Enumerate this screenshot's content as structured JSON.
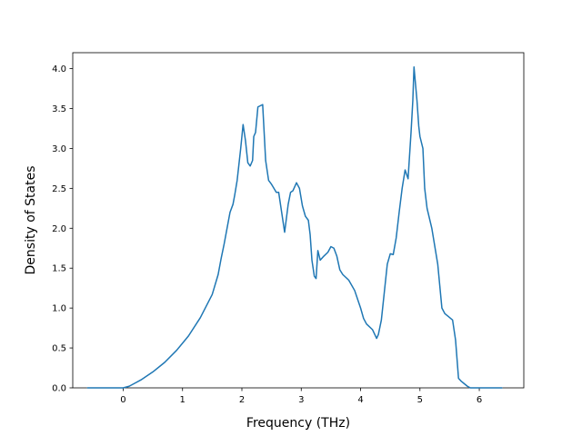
{
  "chart_data": {
    "type": "line",
    "title": "",
    "xlabel": "Frequency (THz)",
    "ylabel": "Density of States",
    "xlim": [
      -0.85,
      6.75
    ],
    "ylim": [
      0.0,
      4.2
    ],
    "xticks": [
      0,
      1,
      2,
      3,
      4,
      5,
      6
    ],
    "xtick_labels": [
      "0",
      "1",
      "2",
      "3",
      "4",
      "5",
      "6"
    ],
    "yticks": [
      0.0,
      0.5,
      1.0,
      1.5,
      2.0,
      2.5,
      3.0,
      3.5,
      4.0
    ],
    "ytick_labels": [
      "0.0",
      "0.5",
      "1.0",
      "1.5",
      "2.0",
      "2.5",
      "3.0",
      "3.5",
      "4.0"
    ],
    "grid": false,
    "line_color": "#1f77b4",
    "series": [
      {
        "x": [
          -0.6,
          0.0,
          0.1,
          0.2,
          0.3,
          0.5,
          0.7,
          0.9,
          1.1,
          1.3,
          1.5,
          1.6,
          1.65,
          1.7,
          1.8,
          1.85,
          1.88,
          1.92,
          1.95,
          1.98,
          2.02,
          2.06,
          2.1,
          2.14,
          2.18,
          2.2,
          2.23,
          2.27,
          2.35,
          2.4,
          2.45,
          2.5,
          2.58,
          2.62,
          2.67,
          2.72,
          2.78,
          2.82,
          2.86,
          2.92,
          2.97,
          3.02,
          3.07,
          3.12,
          3.15,
          3.18,
          3.22,
          3.25,
          3.28,
          3.32,
          3.38,
          3.45,
          3.5,
          3.55,
          3.6,
          3.65,
          3.7,
          3.8,
          3.9,
          4.0,
          4.05,
          4.1,
          4.2,
          4.27,
          4.3,
          4.35,
          4.4,
          4.45,
          4.5,
          4.55,
          4.6,
          4.65,
          4.7,
          4.75,
          4.8,
          4.85,
          4.88,
          4.9,
          4.92,
          4.95,
          4.98,
          5.0,
          5.05,
          5.08,
          5.12,
          5.2,
          5.3,
          5.37,
          5.42,
          5.47,
          5.55,
          5.6,
          5.65,
          5.7,
          5.8,
          5.85,
          6.0,
          6.38
        ],
        "y": [
          0.0,
          0.0,
          0.02,
          0.06,
          0.1,
          0.2,
          0.32,
          0.47,
          0.65,
          0.88,
          1.17,
          1.42,
          1.62,
          1.8,
          2.2,
          2.3,
          2.42,
          2.6,
          2.8,
          3.0,
          3.3,
          3.1,
          2.82,
          2.78,
          2.85,
          3.15,
          3.2,
          3.52,
          3.55,
          2.85,
          2.6,
          2.55,
          2.45,
          2.45,
          2.2,
          1.95,
          2.3,
          2.45,
          2.47,
          2.57,
          2.5,
          2.28,
          2.15,
          2.1,
          1.92,
          1.6,
          1.4,
          1.37,
          1.72,
          1.6,
          1.65,
          1.7,
          1.77,
          1.75,
          1.65,
          1.48,
          1.42,
          1.35,
          1.22,
          1.0,
          0.87,
          0.8,
          0.73,
          0.62,
          0.67,
          0.85,
          1.2,
          1.55,
          1.68,
          1.67,
          1.88,
          2.2,
          2.5,
          2.73,
          2.62,
          3.2,
          3.6,
          4.02,
          3.85,
          3.6,
          3.28,
          3.15,
          3.0,
          2.5,
          2.25,
          2.0,
          1.55,
          1.0,
          0.93,
          0.9,
          0.85,
          0.6,
          0.12,
          0.08,
          0.02,
          0.0,
          0.0,
          0.0
        ]
      }
    ]
  }
}
